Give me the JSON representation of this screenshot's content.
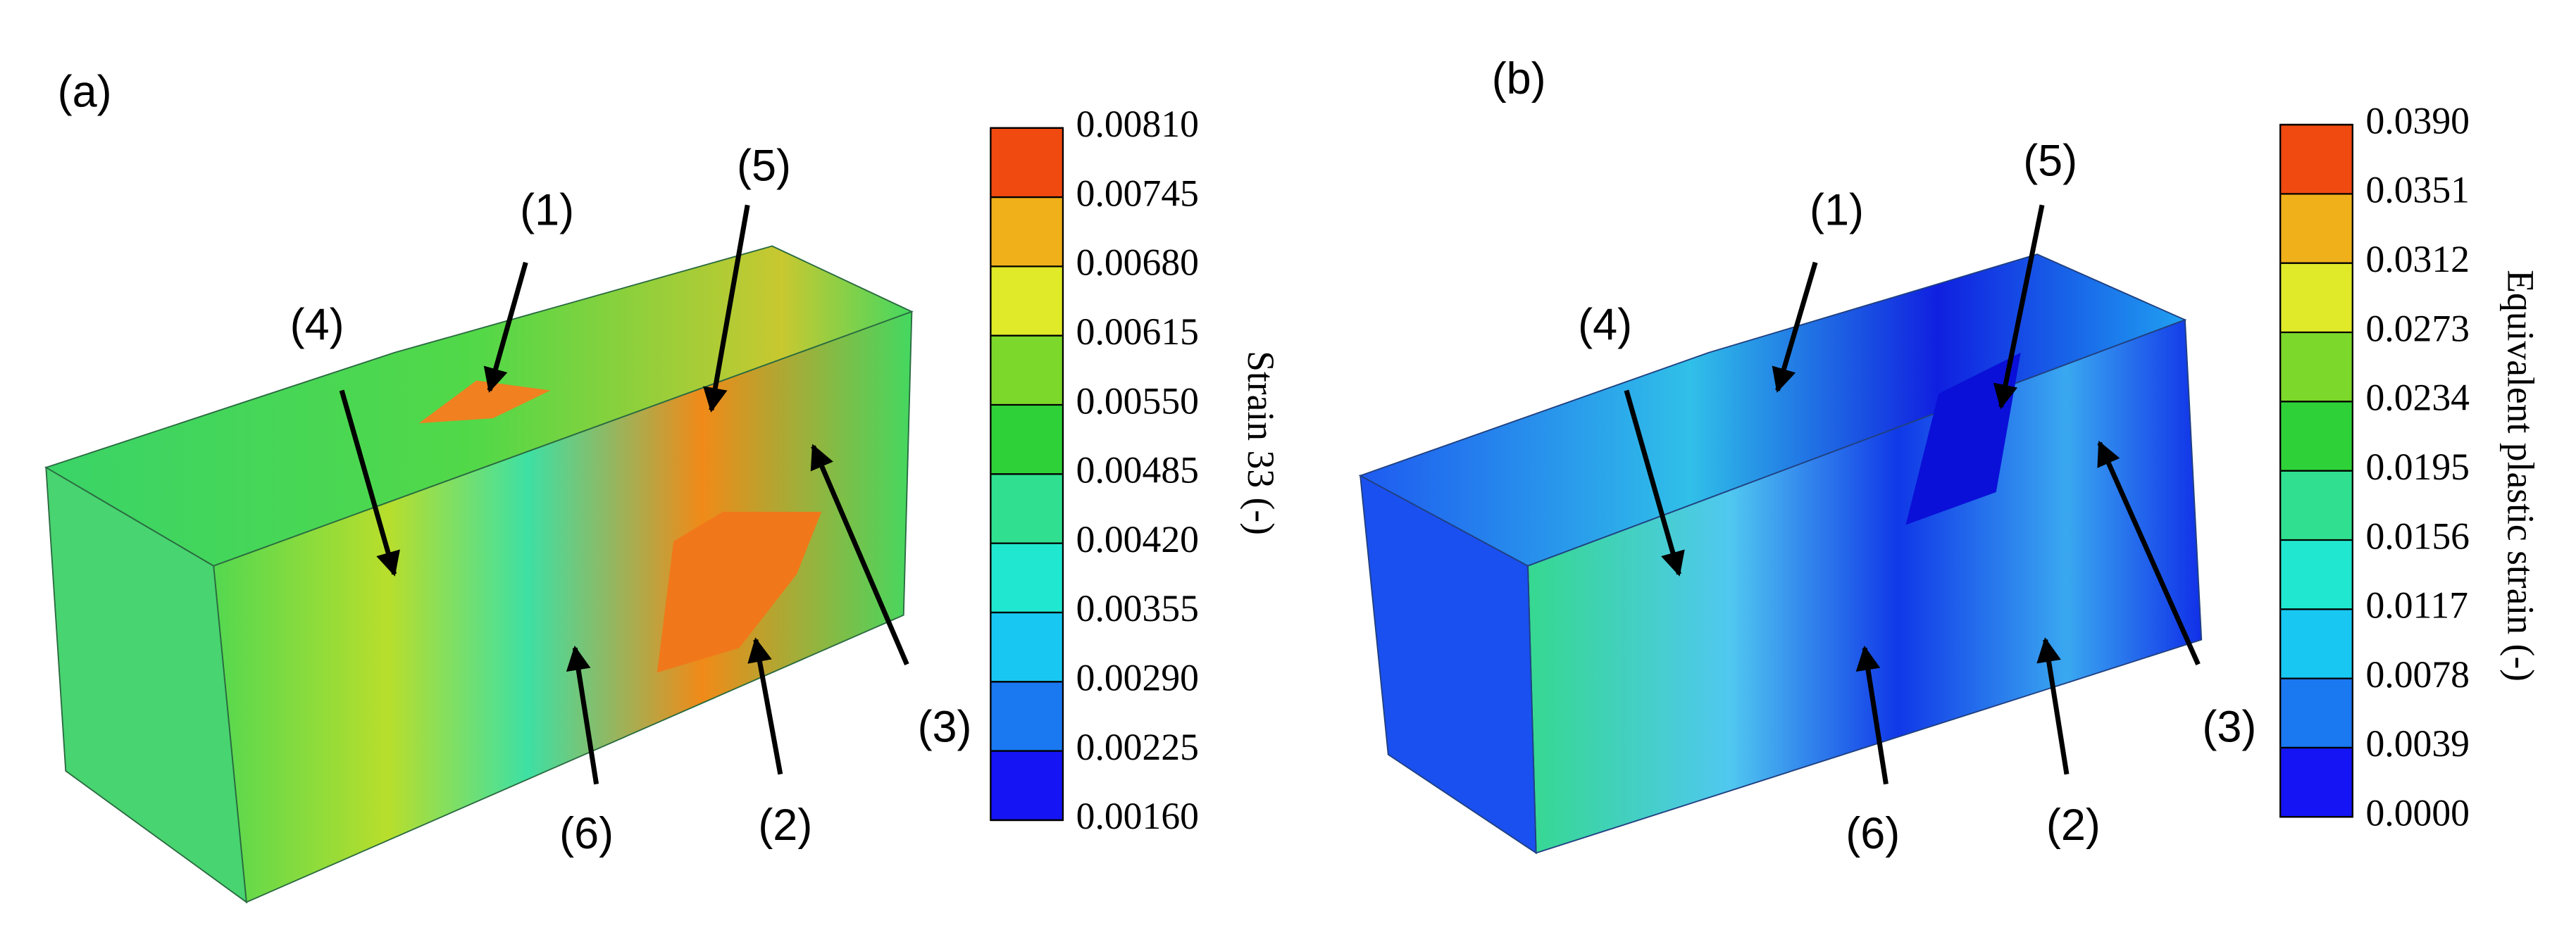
{
  "panels": [
    {
      "label": "(a)",
      "annotations": [
        "(1)",
        "(5)",
        "(4)",
        "(3)",
        "(6)",
        "(2)"
      ],
      "colorbar": {
        "title": "Strain 33 (-)",
        "ticks": [
          {
            "value": 0.0081,
            "label": "0.00810"
          },
          {
            "value": 0.00745,
            "label": "0.00745"
          },
          {
            "value": 0.0068,
            "label": "0.00680"
          },
          {
            "value": 0.00615,
            "label": "0.00615"
          },
          {
            "value": 0.0055,
            "label": "0.00550"
          },
          {
            "value": 0.00485,
            "label": "0.00485"
          },
          {
            "value": 0.0042,
            "label": "0.00420"
          },
          {
            "value": 0.00355,
            "label": "0.00355"
          },
          {
            "value": 0.0029,
            "label": "0.00290"
          },
          {
            "value": 0.00225,
            "label": "0.00225"
          },
          {
            "value": 0.0016,
            "label": "0.00160"
          }
        ]
      }
    },
    {
      "label": "(b)",
      "annotations": [
        "(1)",
        "(5)",
        "(4)",
        "(3)",
        "(6)",
        "(2)"
      ],
      "colorbar": {
        "title": "Equivalent plastic strain (-)",
        "ticks": [
          {
            "value": 0.039,
            "label": "0.0390"
          },
          {
            "value": 0.0351,
            "label": "0.0351"
          },
          {
            "value": 0.0312,
            "label": "0.0312"
          },
          {
            "value": 0.0273,
            "label": "0.0273"
          },
          {
            "value": 0.0234,
            "label": "0.0234"
          },
          {
            "value": 0.0195,
            "label": "0.0195"
          },
          {
            "value": 0.0156,
            "label": "0.0156"
          },
          {
            "value": 0.0117,
            "label": "0.0117"
          },
          {
            "value": 0.0078,
            "label": "0.0078"
          },
          {
            "value": 0.0039,
            "label": "0.0039"
          },
          {
            "value": 0,
            "label": "0.0000"
          }
        ]
      }
    }
  ]
}
